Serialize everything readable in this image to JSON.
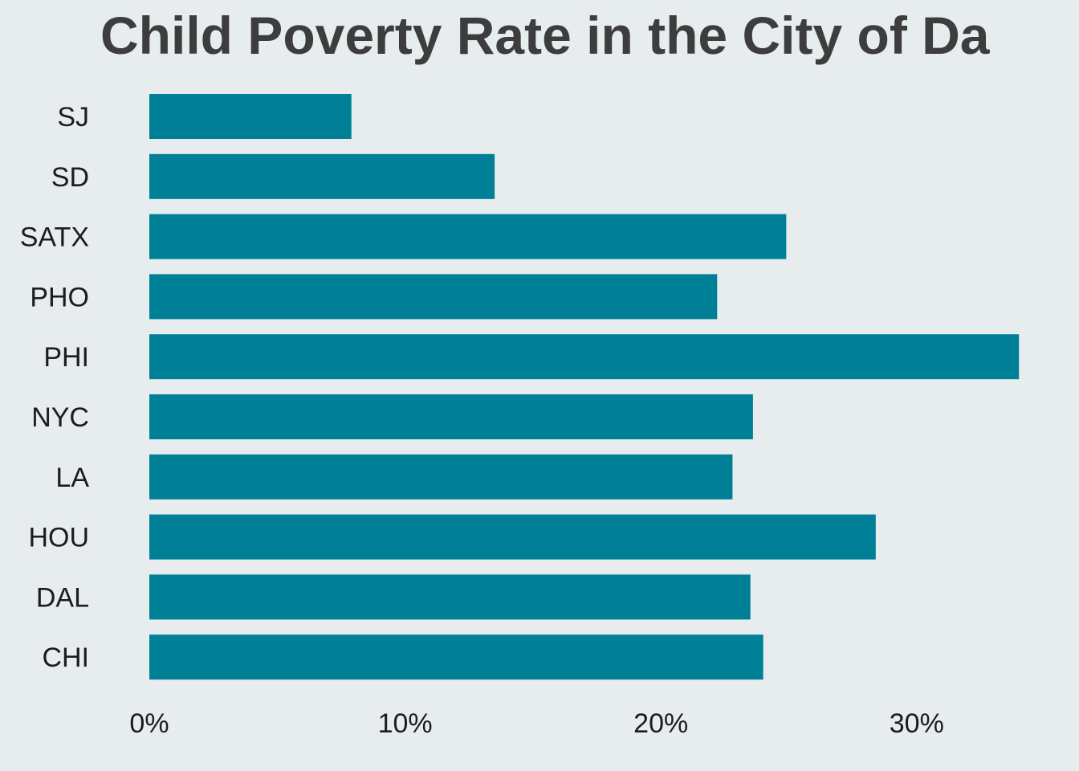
{
  "chart_data": {
    "type": "bar",
    "orientation": "horizontal",
    "title": "Child Poverty Rate in the City of Da",
    "categories": [
      "SJ",
      "SD",
      "SATX",
      "PHO",
      "PHI",
      "NYC",
      "LA",
      "HOU",
      "DAL",
      "CHI"
    ],
    "values": [
      0.079,
      0.135,
      0.249,
      0.222,
      0.34,
      0.236,
      0.228,
      0.284,
      0.235,
      0.24
    ],
    "xlim": [
      0,
      0.36
    ],
    "x_ticks": [
      0,
      0.1,
      0.2,
      0.3
    ],
    "x_tick_labels": [
      "0%",
      "10%",
      "20%",
      "30%"
    ],
    "xlabel": "",
    "ylabel": "",
    "grid": false,
    "legend": "none",
    "bar_color": "#008097",
    "background_color": "#e7ecee"
  }
}
